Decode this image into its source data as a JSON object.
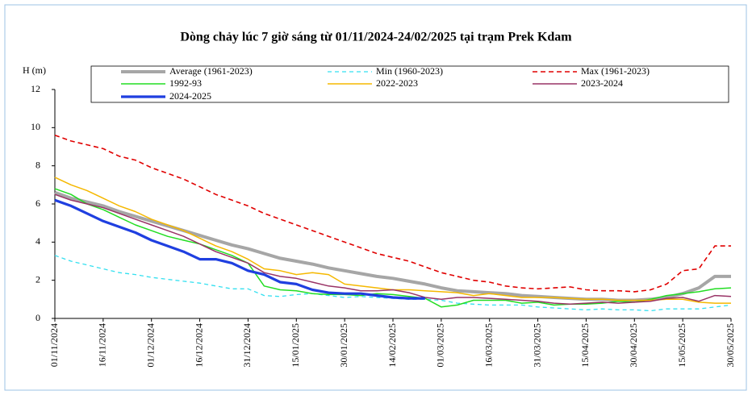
{
  "chart_data": {
    "type": "line",
    "title": "Dòng chảy lúc 7 giờ sáng từ 01/11/2024-24/02/2025 tại trạm Prek Kdam",
    "y_label": "H (m)",
    "categories": [
      "01/11/2024",
      null,
      null,
      "16/11/2024",
      null,
      null,
      "01/12/2024",
      null,
      null,
      "16/12/2024",
      null,
      null,
      "31/12/2024",
      null,
      null,
      "15/01/2025",
      null,
      null,
      "30/01/2025",
      null,
      null,
      "14/02/2025",
      null,
      null,
      "01/03/2025",
      null,
      null,
      "16/03/2025",
      null,
      null,
      "31/03/2025",
      null,
      null,
      "15/04/2025",
      null,
      null,
      "30/04/2025",
      null,
      null,
      "15/05/2025",
      null,
      null,
      "30/05/2025"
    ],
    "ylim": [
      0,
      12
    ],
    "yticks": [
      0,
      2,
      4,
      6,
      8,
      10,
      12
    ],
    "series": [
      {
        "name": "Average (1961-2023)",
        "color": "#a6a6a6",
        "values": [
          6.6,
          6.3,
          6.1,
          5.9,
          5.6,
          5.35,
          5.1,
          4.85,
          4.6,
          4.35,
          4.1,
          3.85,
          3.65,
          3.4,
          3.15,
          3.0,
          2.85,
          2.65,
          2.5,
          2.35,
          2.2,
          2.1,
          1.95,
          1.8,
          1.6,
          1.45,
          1.4,
          1.35,
          1.3,
          1.2,
          1.15,
          1.1,
          1.05,
          1.0,
          1.0,
          0.95,
          0.95,
          1.0,
          1.1,
          1.3,
          1.6,
          2.2,
          2.2
        ]
      },
      {
        "name": "Min (1960-2023)",
        "color": "#33e0f0",
        "values": [
          3.3,
          3.0,
          2.8,
          2.6,
          2.4,
          2.3,
          2.15,
          2.05,
          1.95,
          1.85,
          1.7,
          1.55,
          1.55,
          1.2,
          1.15,
          1.25,
          1.3,
          1.2,
          1.1,
          1.15,
          1.1,
          1.05,
          1.0,
          1.0,
          0.95,
          0.8,
          0.75,
          0.7,
          0.7,
          0.7,
          0.6,
          0.55,
          0.5,
          0.45,
          0.5,
          0.45,
          0.45,
          0.4,
          0.5,
          0.5,
          0.5,
          0.6,
          0.7
        ]
      },
      {
        "name": "Max (1961-2023)",
        "color": "#e00000",
        "values": [
          9.6,
          9.3,
          9.1,
          8.9,
          8.5,
          8.3,
          7.9,
          7.6,
          7.3,
          6.9,
          6.5,
          6.2,
          5.9,
          5.5,
          5.2,
          4.9,
          4.6,
          4.3,
          4.0,
          3.7,
          3.4,
          3.2,
          3.0,
          2.7,
          2.4,
          2.2,
          2.0,
          1.9,
          1.7,
          1.6,
          1.55,
          1.6,
          1.65,
          1.5,
          1.45,
          1.45,
          1.4,
          1.5,
          1.8,
          2.5,
          2.6,
          3.8,
          3.8
        ]
      },
      {
        "name": "1992-93",
        "color": "#22dd22",
        "values": [
          6.8,
          6.5,
          6.0,
          5.7,
          5.3,
          4.9,
          4.6,
          4.3,
          4.1,
          3.9,
          3.6,
          3.3,
          2.9,
          1.7,
          1.5,
          1.45,
          1.3,
          1.25,
          1.25,
          1.2,
          1.3,
          1.25,
          1.15,
          1.05,
          0.6,
          0.7,
          0.95,
          0.95,
          0.95,
          0.8,
          0.85,
          0.7,
          0.75,
          0.75,
          0.8,
          0.9,
          0.85,
          1.0,
          1.2,
          1.3,
          1.4,
          1.55,
          1.6
        ]
      },
      {
        "name": "2022-2023",
        "color": "#f5b800",
        "values": [
          7.4,
          7.0,
          6.7,
          6.3,
          5.9,
          5.6,
          5.2,
          4.9,
          4.6,
          4.2,
          3.8,
          3.5,
          3.1,
          2.6,
          2.5,
          2.3,
          2.4,
          2.3,
          1.8,
          1.7,
          1.6,
          1.5,
          1.5,
          1.45,
          1.4,
          1.35,
          1.2,
          1.3,
          1.2,
          1.1,
          1.1,
          1.1,
          1.05,
          1.0,
          1.0,
          0.95,
          0.95,
          0.95,
          1.0,
          1.0,
          0.85,
          0.8,
          0.8
        ]
      },
      {
        "name": "2023-2024",
        "color": "#993366",
        "values": [
          6.5,
          6.2,
          6.0,
          5.8,
          5.5,
          5.2,
          4.9,
          4.6,
          4.3,
          3.9,
          3.5,
          3.2,
          2.9,
          2.4,
          2.2,
          2.1,
          1.9,
          1.7,
          1.6,
          1.45,
          1.45,
          1.5,
          1.35,
          1.1,
          1.0,
          1.1,
          1.1,
          1.05,
          1.0,
          0.95,
          0.9,
          0.8,
          0.75,
          0.8,
          0.85,
          0.8,
          0.85,
          0.9,
          1.05,
          1.1,
          0.9,
          1.2,
          1.15
        ]
      },
      {
        "name": "2024-2025",
        "color": "#1f3fe0",
        "values": [
          6.2,
          5.9,
          5.5,
          5.1,
          4.8,
          4.5,
          4.1,
          3.8,
          3.5,
          3.1,
          3.1,
          2.9,
          2.5,
          2.3,
          1.9,
          1.8,
          1.5,
          1.35,
          1.3,
          1.3,
          1.2,
          1.1,
          1.05,
          1.05,
          null,
          null,
          null,
          null,
          null,
          null,
          null,
          null,
          null,
          null,
          null,
          null,
          null,
          null,
          null,
          null,
          null,
          null,
          null
        ]
      }
    ]
  }
}
